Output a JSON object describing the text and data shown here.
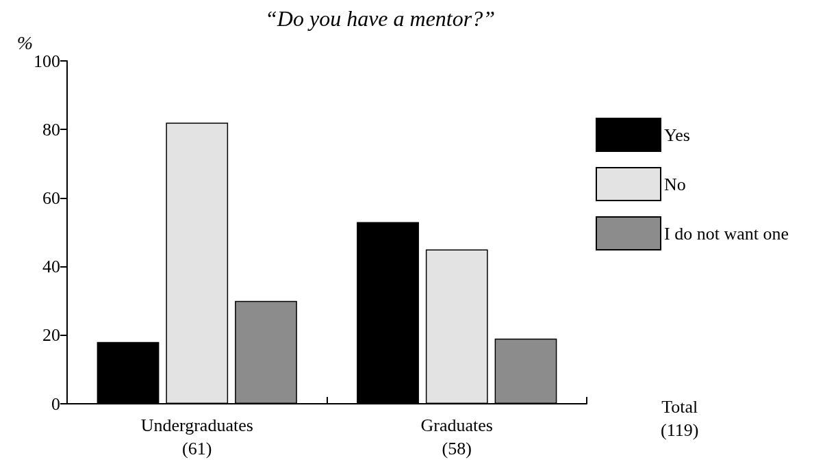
{
  "chart_data": {
    "type": "bar",
    "title": "“Do you have a mentor?”",
    "ylabel": "%",
    "categories": [
      "Undergraduates\n(61)",
      "Graduates\n(58)"
    ],
    "series": [
      {
        "name": "Yes",
        "color": "#000000",
        "values": [
          18,
          53
        ]
      },
      {
        "name": "No",
        "color": "#e3e3e3",
        "values": [
          82,
          45
        ]
      },
      {
        "name": "I do not want one",
        "color": "#8c8c8c",
        "values": [
          30,
          19
        ]
      }
    ],
    "ylim": [
      0,
      100
    ],
    "yticks": [
      0,
      20,
      40,
      60,
      80,
      100
    ],
    "grid": false,
    "legend": "right",
    "annotations": [
      "Total\n(119)"
    ]
  }
}
